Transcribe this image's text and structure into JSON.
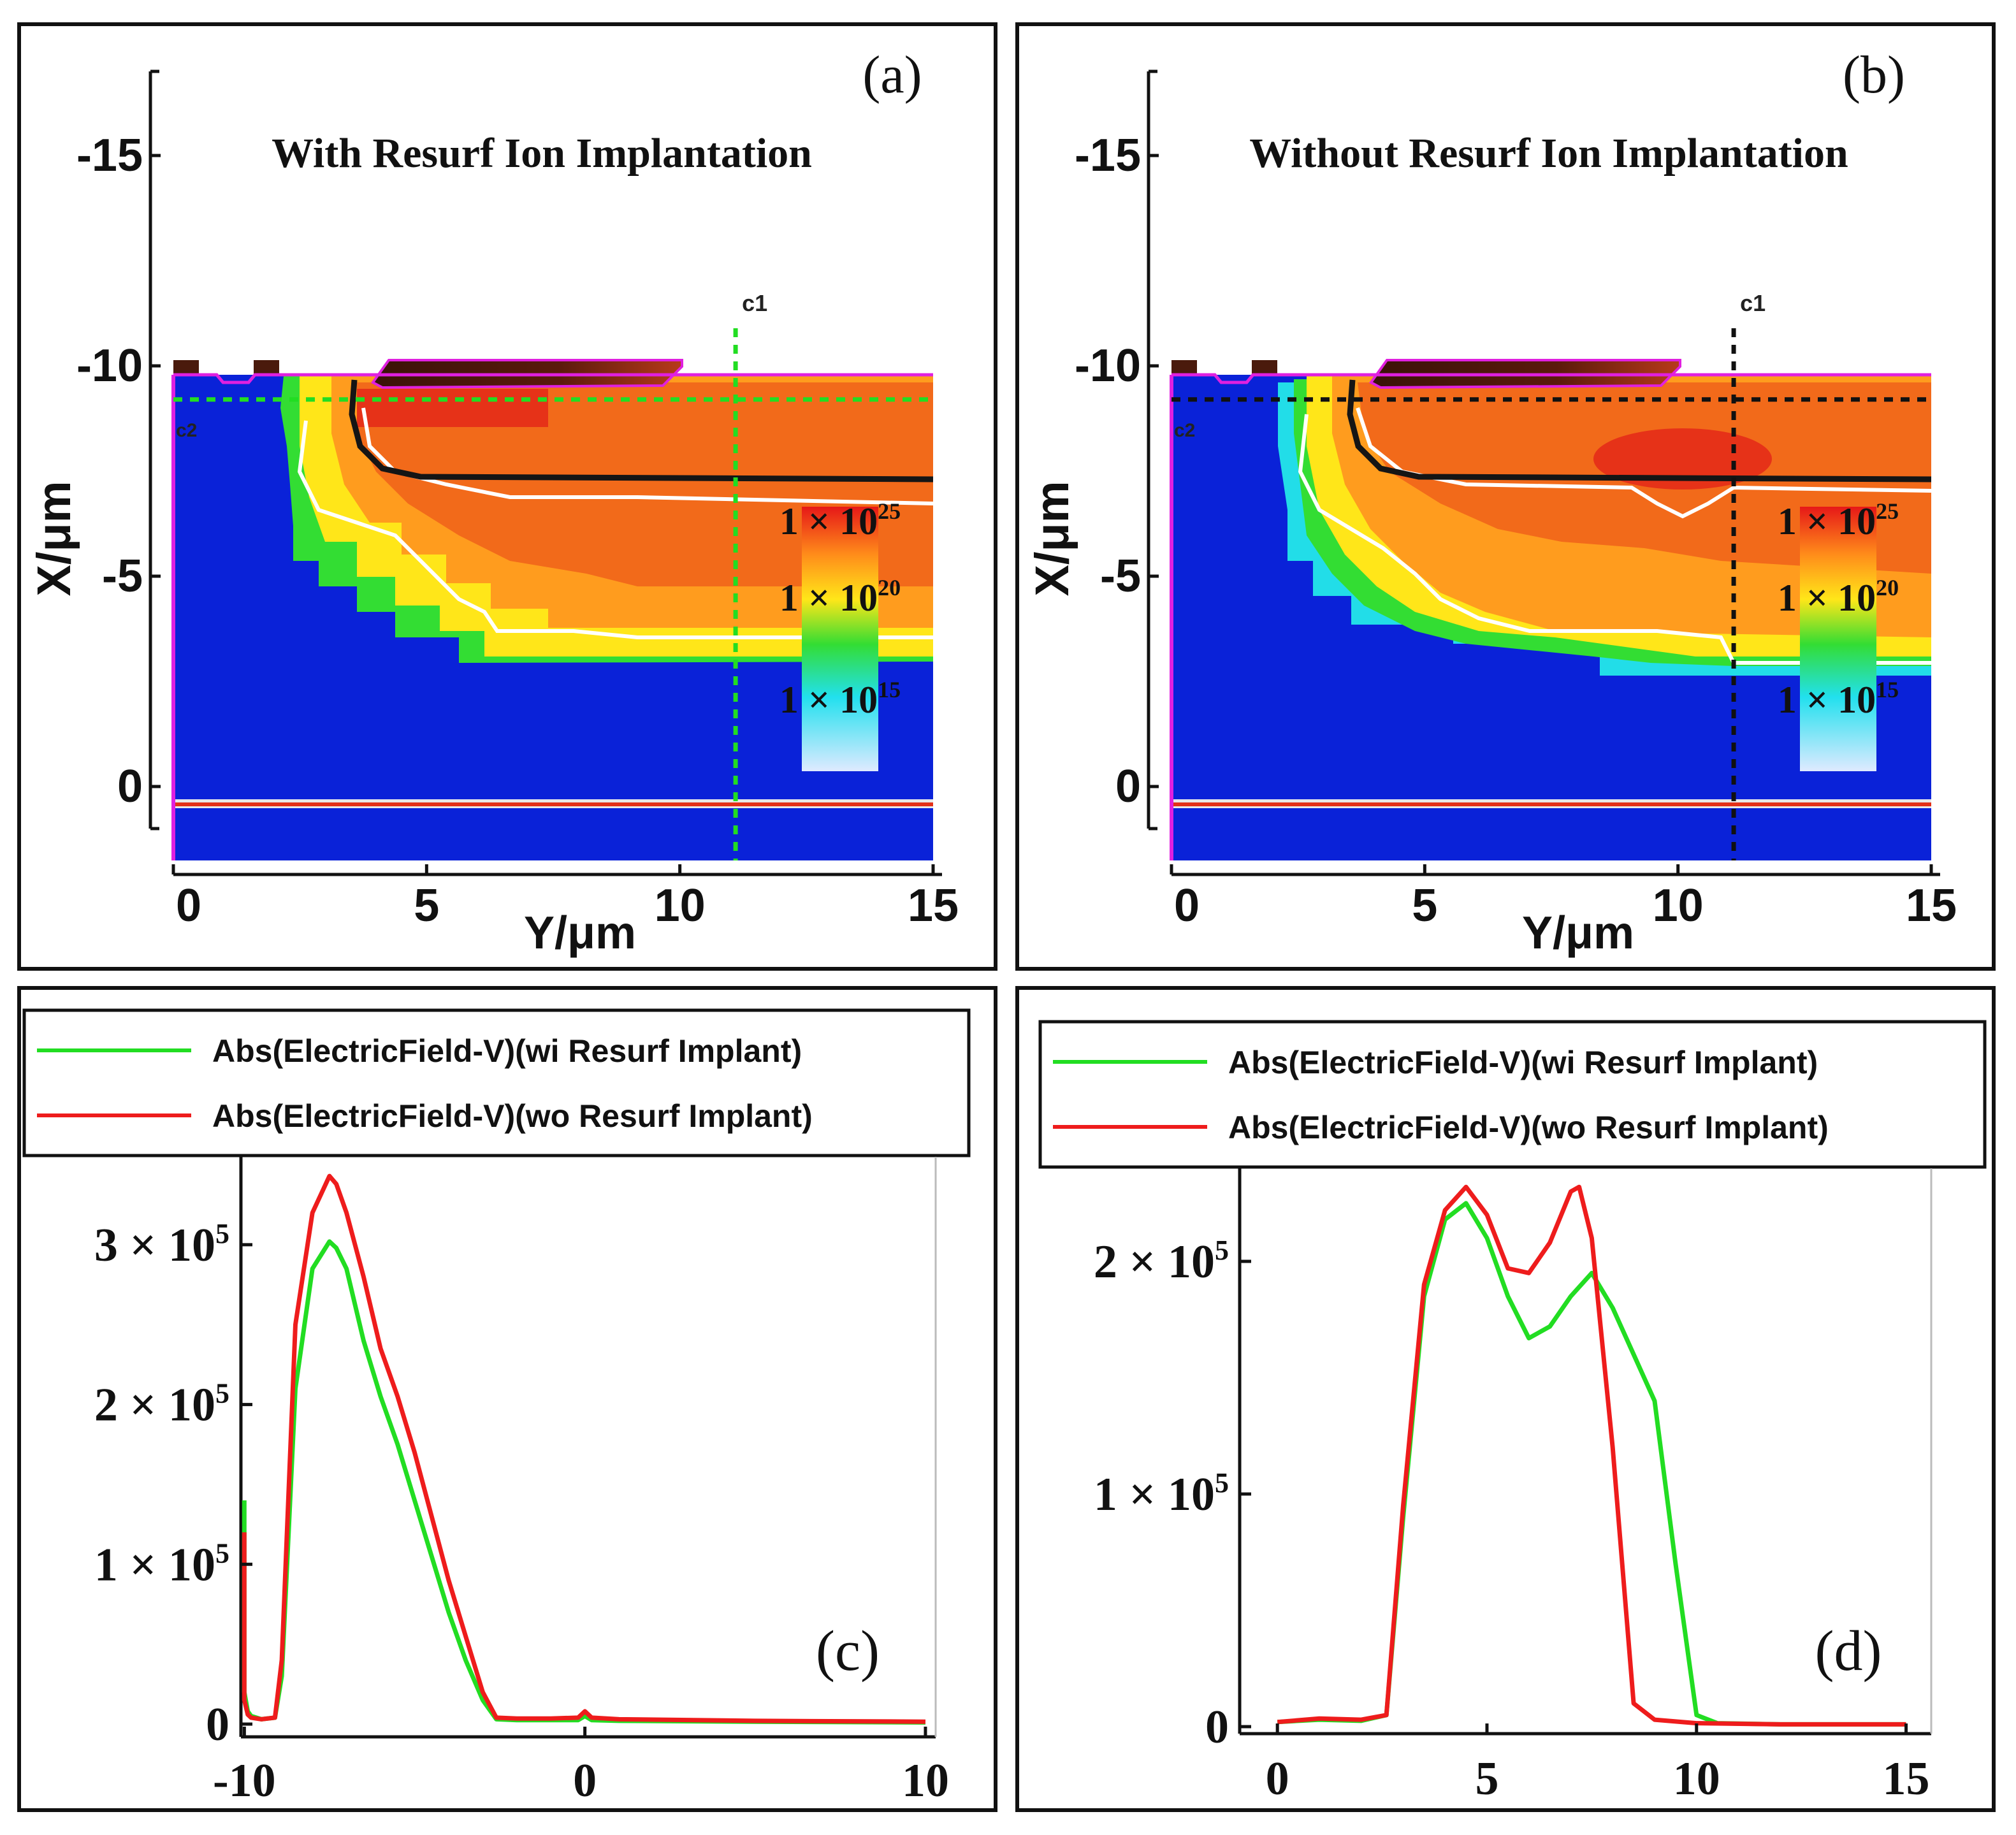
{
  "colors": {
    "background": "#ffffff",
    "frame": "#111111",
    "bg_blue": "#0a22d8",
    "green_line": "#22dd22",
    "red_line": "#ee1c1c",
    "magenta": "#e020e0"
  },
  "chart_data": [
    {
      "id": "a",
      "type": "heatmap",
      "label": "(a)",
      "title": "With Resurf Ion Implantation",
      "xlabel": "Y/μm",
      "ylabel": "X/μm",
      "x_ticks": [
        "0",
        "5",
        "10",
        "15"
      ],
      "x_tick_values": [
        0,
        5,
        10,
        15
      ],
      "y_ticks": [
        "-15",
        "-10",
        "-5",
        "0"
      ],
      "y_tick_values": [
        -15,
        -10,
        -5,
        0
      ],
      "xlim": [
        0,
        15
      ],
      "ylim": [
        -17,
        1
      ],
      "cutlines": [
        {
          "name": "C1",
          "label": "c1",
          "orientation": "vertical",
          "position": 11.1,
          "color": "#22dd22"
        },
        {
          "name": "C2",
          "label": "c2",
          "orientation": "horizontal",
          "position": -9.2,
          "color": "#22dd22"
        }
      ],
      "colorbar": {
        "labels": [
          "1 × 10",
          "1 × 10",
          "1 × 10"
        ],
        "exponents": [
          "25",
          "20",
          "15"
        ],
        "values": [
          1e+25,
          1e+20,
          1000000000000000.0
        ]
      }
    },
    {
      "id": "b",
      "type": "heatmap",
      "label": "(b)",
      "title": "Without Resurf Ion Implantation",
      "xlabel": "Y/μm",
      "ylabel": "X/μm",
      "x_ticks": [
        "0",
        "5",
        "10",
        "15"
      ],
      "x_tick_values": [
        0,
        5,
        10,
        15
      ],
      "y_ticks": [
        "-15",
        "-10",
        "-5",
        "0"
      ],
      "y_tick_values": [
        -15,
        -10,
        -5,
        0
      ],
      "xlim": [
        0,
        15
      ],
      "ylim": [
        -17,
        1
      ],
      "cutlines": [
        {
          "name": "C1",
          "label": "c1",
          "orientation": "vertical",
          "position": 11.1,
          "color": "#111111"
        },
        {
          "name": "C2",
          "label": "c2",
          "orientation": "horizontal",
          "position": -9.2,
          "color": "#111111"
        }
      ],
      "colorbar": {
        "labels": [
          "1 × 10",
          "1 × 10",
          "1 × 10"
        ],
        "exponents": [
          "25",
          "20",
          "15"
        ],
        "values": [
          1e+25,
          1e+20,
          1000000000000000.0
        ]
      }
    },
    {
      "id": "c",
      "type": "line",
      "label": "(c)",
      "x_ticks": [
        "-10",
        "0",
        "10"
      ],
      "x_tick_values": [
        -10,
        0,
        10
      ],
      "y_ticks": [
        "0",
        "1 × 10",
        "2 × 10",
        "3 × 10"
      ],
      "y_tick_exponents": [
        "",
        "5",
        "5",
        "5"
      ],
      "y_tick_values": [
        0,
        100000,
        200000,
        300000
      ],
      "xlim": [
        -10.1,
        10.3
      ],
      "ylim": [
        -8000,
        355000
      ],
      "legend": [
        "Abs(ElectricField-V)(wi Resurf Implant)",
        "Abs(ElectricField-V)(wo Resurf Implant)"
      ],
      "series": [
        {
          "name": "Abs(ElectricField-V)(wi Resurf Implant)",
          "color": "#22dd22",
          "x": [
            -10.0,
            -10.0,
            -9.9,
            -9.8,
            -9.5,
            -9.1,
            -8.9,
            -8.5,
            -8.0,
            -7.5,
            -7.3,
            -7.0,
            -6.5,
            -6.0,
            -5.5,
            -5.0,
            -4.5,
            -4.0,
            -3.5,
            -3.0,
            -2.6,
            -2.0,
            -1.0,
            -0.2,
            0.0,
            0.2,
            1.0,
            5.0,
            10.0
          ],
          "y": [
            140000,
            20000,
            8000,
            5000,
            3000,
            4000,
            30000,
            210000,
            285000,
            302000,
            298000,
            285000,
            240000,
            205000,
            175000,
            140000,
            105000,
            70000,
            40000,
            15000,
            3000,
            2500,
            2500,
            2500,
            5000,
            2500,
            2000,
            1500,
            1000
          ]
        },
        {
          "name": "Abs(ElectricField-V)(wo Resurf Implant)",
          "color": "#ee1c1c",
          "x": [
            -10.0,
            -10.0,
            -9.9,
            -9.8,
            -9.5,
            -9.1,
            -8.9,
            -8.5,
            -8.0,
            -7.5,
            -7.3,
            -7.0,
            -6.5,
            -6.0,
            -5.5,
            -5.0,
            -4.5,
            -4.0,
            -3.5,
            -3.0,
            -2.6,
            -2.0,
            -1.0,
            -0.2,
            0.0,
            0.2,
            1.0,
            5.0,
            10.0
          ],
          "y": [
            120000,
            15000,
            6000,
            4000,
            3000,
            4000,
            40000,
            250000,
            320000,
            343000,
            338000,
            320000,
            280000,
            235000,
            205000,
            170000,
            130000,
            90000,
            55000,
            20000,
            4000,
            3500,
            3500,
            4000,
            8000,
            4000,
            3000,
            2000,
            1500
          ]
        }
      ]
    },
    {
      "id": "d",
      "type": "line",
      "label": "(d)",
      "x_ticks": [
        "0",
        "5",
        "10",
        "15"
      ],
      "x_tick_values": [
        0,
        5,
        10,
        15
      ],
      "y_ticks": [
        "0",
        "1 × 10",
        "2 × 10"
      ],
      "y_tick_exponents": [
        "",
        "5",
        "5"
      ],
      "y_tick_values": [
        0,
        100000,
        200000
      ],
      "xlim": [
        -0.9,
        15.6
      ],
      "ylim": [
        -3000,
        240000
      ],
      "legend": [
        "Abs(ElectricField-V)(wi Resurf Implant)",
        "Abs(ElectricField-V)(wo Resurf Implant)"
      ],
      "series": [
        {
          "name": "Abs(ElectricField-V)(wi Resurf Implant)",
          "color": "#22dd22",
          "x": [
            0.0,
            1.0,
            2.0,
            2.6,
            3.0,
            3.5,
            4.0,
            4.5,
            5.0,
            5.5,
            6.0,
            6.5,
            7.0,
            7.5,
            8.0,
            8.5,
            9.0,
            9.5,
            10.0,
            10.5,
            12.0,
            15.0
          ],
          "y": [
            2000,
            3000,
            2500,
            5000,
            90000,
            185000,
            218000,
            225000,
            210000,
            185000,
            167000,
            172000,
            185000,
            195000,
            180000,
            160000,
            140000,
            70000,
            5000,
            1500,
            1000,
            1000
          ]
        },
        {
          "name": "Abs(ElectricField-V)(wo Resurf Implant)",
          "color": "#ee1c1c",
          "x": [
            0.0,
            1.0,
            2.0,
            2.6,
            3.0,
            3.5,
            4.0,
            4.5,
            5.0,
            5.5,
            6.0,
            6.5,
            7.0,
            7.2,
            7.5,
            8.0,
            8.5,
            9.0,
            10.0,
            12.0,
            15.0
          ],
          "y": [
            2000,
            3500,
            3000,
            5000,
            95000,
            190000,
            222000,
            232000,
            220000,
            197000,
            195000,
            208000,
            230000,
            232000,
            210000,
            120000,
            10000,
            3000,
            1500,
            1000,
            1000
          ]
        }
      ]
    }
  ]
}
